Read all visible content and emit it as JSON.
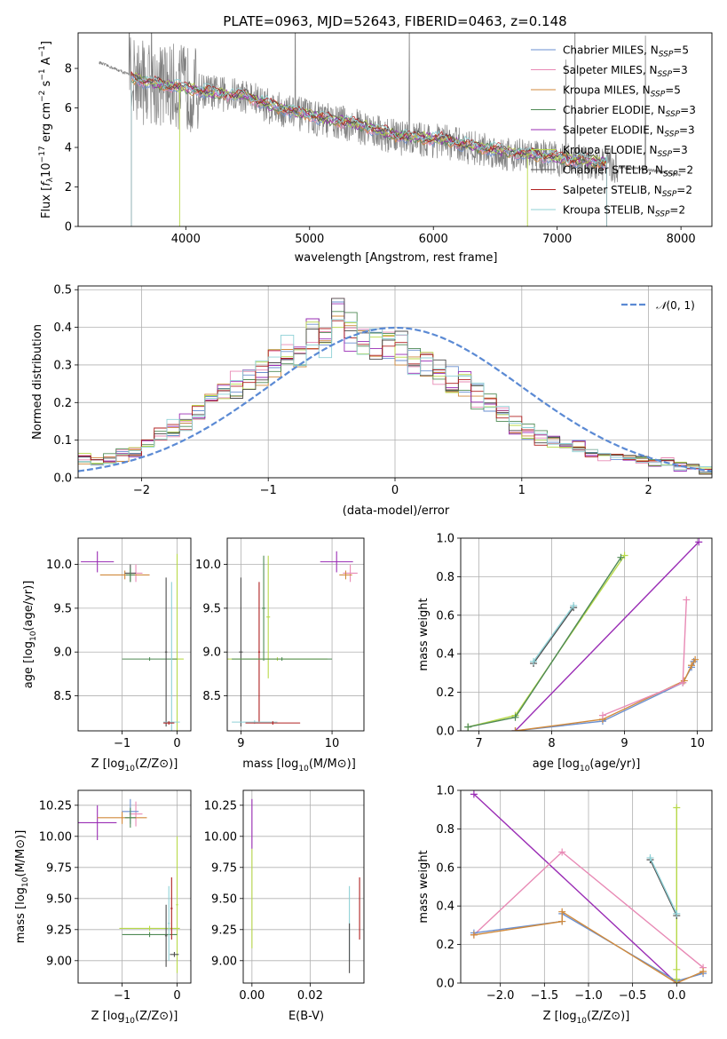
{
  "figure": {
    "title": "PLATE=0963, MJD=52643, FIBERID=0463, z=0.148"
  },
  "colors": {
    "Chabrier MILES": "#6a8fd0",
    "Salpeter MILES": "#e88ab5",
    "Kroupa MILES": "#d08a3c",
    "Chabrier ELODIE": "#4f8a55",
    "Salpeter ELODIE": "#9a2db5",
    "Kroupa ELODIE": "#b8d94a",
    "Chabrier STELIB": "#4d4d4d",
    "Salpeter STELIB": "#b02020",
    "Kroupa STELIB": "#8fd1d6",
    "data": "#808080",
    "normal": "#5b8ad4"
  },
  "chart_data": [
    {
      "id": "spectrum",
      "type": "line",
      "xlabel": "wavelength [Angstrom, rest frame]",
      "ylabel_main": "Flux [",
      "xlim": [
        3130,
        8250
      ],
      "ylim": [
        0,
        9.8
      ],
      "xticks": [
        4000,
        5000,
        6000,
        7000,
        8000
      ],
      "yticks": [
        0,
        2,
        4,
        6,
        8
      ],
      "grid": false,
      "legend_position": "right",
      "legend": [
        {
          "name": "Chabrier MILES",
          "nssp": "5"
        },
        {
          "name": "Salpeter MILES",
          "nssp": "3"
        },
        {
          "name": "Kroupa MILES",
          "nssp": "5"
        },
        {
          "name": "Chabrier ELODIE",
          "nssp": "3"
        },
        {
          "name": "Salpeter ELODIE",
          "nssp": "3"
        },
        {
          "name": "Kroupa ELODIE",
          "nssp": "3"
        },
        {
          "name": "Chabrier STELIB",
          "nssp": "2"
        },
        {
          "name": "Salpeter STELIB",
          "nssp": "2"
        },
        {
          "name": "Kroupa STELIB",
          "nssp": "2"
        }
      ],
      "data_trend": {
        "x": [
          3300,
          3500,
          3700,
          3900,
          4100,
          4300,
          4500,
          4700,
          4900,
          5100,
          5300,
          5500,
          5700,
          5900,
          6100,
          6300,
          6500,
          6700,
          6900,
          7100,
          7300,
          7500,
          7700,
          7900,
          8000
        ],
        "y": [
          8.3,
          7.8,
          7.2,
          7.1,
          6.9,
          6.7,
          6.6,
          6.0,
          5.7,
          5.4,
          5.2,
          4.9,
          4.5,
          4.4,
          4.3,
          4.0,
          3.8,
          3.6,
          3.5,
          3.3,
          3.2,
          3.0,
          2.9,
          2.7,
          2.6
        ]
      },
      "model_trend": {
        "x": [
          3550,
          3700,
          3900,
          4100,
          4300,
          4500,
          4700,
          4900,
          5100,
          5300,
          5500,
          5700,
          5900,
          6100,
          6300,
          6500,
          6700,
          6900,
          7100,
          7300,
          7400
        ],
        "y": [
          7.6,
          7.3,
          7.1,
          6.9,
          6.7,
          6.6,
          6.1,
          5.8,
          5.5,
          5.3,
          5.0,
          4.6,
          4.5,
          4.4,
          4.1,
          3.9,
          3.7,
          3.6,
          3.4,
          3.3,
          3.2
        ]
      }
    },
    {
      "id": "residuals",
      "type": "step",
      "xlabel": "(data-model)/error",
      "ylabel": "Normed distribution",
      "xlim": [
        -2.5,
        2.5
      ],
      "ylim": [
        0,
        0.51
      ],
      "xticks": [
        -2,
        -1,
        0,
        1,
        2
      ],
      "yticks": [
        0.0,
        0.1,
        0.2,
        0.3,
        0.4,
        0.5
      ],
      "grid": true,
      "legend_position": "top-right",
      "normal_label": "(0, 1)",
      "bin_edges_start": -2.5,
      "bin_width": 0.1,
      "hist_mean": [
        0.05,
        0.04,
        0.05,
        0.06,
        0.07,
        0.09,
        0.11,
        0.13,
        0.15,
        0.17,
        0.2,
        0.22,
        0.24,
        0.27,
        0.29,
        0.31,
        0.33,
        0.35,
        0.37,
        0.38,
        0.43,
        0.39,
        0.37,
        0.36,
        0.34,
        0.35,
        0.31,
        0.3,
        0.27,
        0.26,
        0.25,
        0.22,
        0.2,
        0.17,
        0.14,
        0.12,
        0.11,
        0.1,
        0.09,
        0.08,
        0.07,
        0.06,
        0.06,
        0.05,
        0.05,
        0.04,
        0.04,
        0.03,
        0.03,
        0.02
      ]
    },
    {
      "id": "age-vs-Z",
      "type": "errorbar",
      "xlabel_main": "Z [log",
      "ylabel_main": "age  [log",
      "xlim": [
        -1.8,
        0.25
      ],
      "ylim": [
        8.1,
        10.3
      ],
      "xticks": [
        -1,
        0
      ],
      "yticks": [
        8.5,
        9.0,
        9.5,
        10.0
      ],
      "grid": true,
      "points": [
        {
          "series": "Salpeter ELODIE",
          "x": -1.45,
          "y": 10.03,
          "xerr": 0.3,
          "yerr": 0.12
        },
        {
          "series": "Salpeter MILES",
          "x": -0.75,
          "y": 9.9,
          "xerr": 0.12,
          "yerr": 0.1
        },
        {
          "series": "Kroupa MILES",
          "x": -0.95,
          "y": 9.88,
          "xerr": 0.45,
          "yerr": 0.05
        },
        {
          "series": "Chabrier STELIB",
          "x": -0.85,
          "y": 9.9,
          "xerr": 0.1,
          "yerr": 0.1
        },
        {
          "series": "Chabrier ELODIE",
          "x": -0.85,
          "y": 9.88,
          "xerr": 0.08,
          "yerr": 0.08
        },
        {
          "series": "Kroupa ELODIE",
          "x": 0.0,
          "y": 8.92,
          "xerr": 0.12,
          "yerr": 1.2
        },
        {
          "series": "Chabrier ELODIE",
          "x": -0.5,
          "y": 8.92,
          "xerr": 0.5,
          "yerr": 0.02
        },
        {
          "series": "Chabrier STELIB",
          "x": -0.2,
          "y": 9.0,
          "xerr": 0.02,
          "yerr": 0.85
        },
        {
          "series": "Kroupa STELIB",
          "x": -0.1,
          "y": 8.2,
          "xerr": 0.15,
          "yerr": 1.6
        },
        {
          "series": "Salpeter STELIB",
          "x": -0.15,
          "y": 8.19,
          "xerr": 0.1,
          "yerr": 0.02
        }
      ]
    },
    {
      "id": "age-vs-mass",
      "type": "errorbar",
      "xlabel_main": "mass [log",
      "xlim": [
        8.85,
        10.35
      ],
      "ylim": [
        8.1,
        10.3
      ],
      "xticks": [
        9,
        10
      ],
      "yticks": [
        8.5,
        9.0,
        9.5,
        10.0
      ],
      "grid": true,
      "points": [
        {
          "series": "Salpeter ELODIE",
          "x": 10.05,
          "y": 10.03,
          "xerr": 0.18,
          "yerr": 0.12
        },
        {
          "series": "Salpeter MILES",
          "x": 10.2,
          "y": 9.9,
          "xerr": 0.08,
          "yerr": 0.1
        },
        {
          "series": "Kroupa MILES",
          "x": 10.15,
          "y": 9.88,
          "xerr": 0.07,
          "yerr": 0.05
        },
        {
          "series": "Chabrier STELIB",
          "x": 9.0,
          "y": 9.0,
          "xerr": 0.02,
          "yerr": 0.85
        },
        {
          "series": "Salpeter STELIB",
          "x": 9.2,
          "y": 9.0,
          "xerr": 0.01,
          "yerr": 0.8
        },
        {
          "series": "Kroupa ELODIE",
          "x": 9.3,
          "y": 9.4,
          "xerr": 0.02,
          "yerr": 0.7
        },
        {
          "series": "Chabrier ELODIE",
          "x": 9.25,
          "y": 9.5,
          "xerr": 0.02,
          "yerr": 0.6
        },
        {
          "series": "Kroupa ELODIE",
          "x": 9.4,
          "y": 8.92,
          "xerr": 0.55,
          "yerr": 0.02
        },
        {
          "series": "Chabrier ELODIE",
          "x": 9.45,
          "y": 8.92,
          "xerr": 0.55,
          "yerr": 0.02
        },
        {
          "series": "Kroupa STELIB",
          "x": 9.15,
          "y": 8.2,
          "xerr": 0.25,
          "yerr": 0.02
        },
        {
          "series": "Salpeter STELIB",
          "x": 9.35,
          "y": 8.19,
          "xerr": 0.3,
          "yerr": 0.02
        }
      ]
    },
    {
      "id": "weight-vs-age",
      "type": "line",
      "xlabel_main": "age  [log",
      "ylabel": "mass weight",
      "xlim": [
        6.75,
        10.2
      ],
      "ylim": [
        0,
        1.0
      ],
      "xticks": [
        7,
        8,
        9,
        10
      ],
      "yticks": [
        0.0,
        0.2,
        0.4,
        0.6,
        0.8,
        1.0
      ],
      "grid": true,
      "series": [
        {
          "name": "Kroupa ELODIE",
          "x": [
            6.85,
            7.5,
            9.0
          ],
          "y": [
            0.02,
            0.08,
            0.91
          ]
        },
        {
          "name": "Chabrier ELODIE",
          "x": [
            6.85,
            7.5,
            8.95
          ],
          "y": [
            0.02,
            0.07,
            0.9
          ]
        },
        {
          "name": "Salpeter ELODIE",
          "x": [
            7.5,
            10.02
          ],
          "y": [
            0.0,
            0.98
          ]
        },
        {
          "name": "Chabrier STELIB",
          "x": [
            7.75,
            8.3
          ],
          "y": [
            0.35,
            0.64
          ]
        },
        {
          "name": "Kroupa STELIB",
          "x": [
            7.75,
            8.3
          ],
          "y": [
            0.36,
            0.65
          ]
        },
        {
          "name": "Chabrier MILES",
          "x": [
            7.5,
            8.7,
            9.8,
            9.92,
            9.95
          ],
          "y": [
            0.0,
            0.05,
            0.25,
            0.33,
            0.36
          ]
        },
        {
          "name": "Kroupa MILES",
          "x": [
            7.5,
            8.7,
            9.82,
            9.92,
            9.97
          ],
          "y": [
            0.0,
            0.06,
            0.26,
            0.34,
            0.37
          ]
        },
        {
          "name": "Salpeter MILES",
          "x": [
            8.7,
            9.8,
            9.85
          ],
          "y": [
            0.08,
            0.25,
            0.68
          ]
        }
      ]
    },
    {
      "id": "mass-vs-Z",
      "type": "errorbar",
      "xlabel_main": "Z [log",
      "ylabel_main": "mass [log",
      "xlim": [
        -1.8,
        0.25
      ],
      "ylim": [
        8.82,
        10.37
      ],
      "xticks": [
        -1,
        0
      ],
      "yticks": [
        9.0,
        9.25,
        9.5,
        9.75,
        10.0,
        10.25
      ],
      "grid": true,
      "points": [
        {
          "series": "Salpeter ELODIE",
          "x": -1.45,
          "y": 10.11,
          "xerr": 0.35,
          "yerr": 0.14
        },
        {
          "series": "Salpeter MILES",
          "x": -0.75,
          "y": 10.18,
          "xerr": 0.12,
          "yerr": 0.1
        },
        {
          "series": "Kroupa MILES",
          "x": -1.0,
          "y": 10.15,
          "xerr": 0.45,
          "yerr": 0.05
        },
        {
          "series": "Chabrier MILES",
          "x": -0.85,
          "y": 10.2,
          "xerr": 0.15,
          "yerr": 0.1
        },
        {
          "series": "Chabrier ELODIE",
          "x": -0.85,
          "y": 10.15,
          "xerr": 0.1,
          "yerr": 0.08
        },
        {
          "series": "Kroupa ELODIE",
          "x": 0.0,
          "y": 9.45,
          "xerr": 0.02,
          "yerr": 0.55
        },
        {
          "series": "Kroupa ELODIE",
          "x": -0.5,
          "y": 9.26,
          "xerr": 0.55,
          "yerr": 0.02
        },
        {
          "series": "Chabrier ELODIE",
          "x": -0.5,
          "y": 9.21,
          "xerr": 0.5,
          "yerr": 0.02
        },
        {
          "series": "Salpeter STELIB",
          "x": -0.1,
          "y": 9.42,
          "xerr": 0.02,
          "yerr": 0.25
        },
        {
          "series": "Chabrier STELIB",
          "x": -0.2,
          "y": 9.2,
          "xerr": 0.02,
          "yerr": 0.25
        },
        {
          "series": "Kroupa STELIB",
          "x": -0.15,
          "y": 9.3,
          "xerr": 0.02,
          "yerr": 0.3
        },
        {
          "series": "Chabrier STELIB",
          "x": -0.05,
          "y": 9.05,
          "xerr": 0.08,
          "yerr": 0.02
        }
      ]
    },
    {
      "id": "mass-vs-ebv",
      "type": "errorbar",
      "xlabel": "E(B-V)",
      "xlim": [
        -0.003,
        0.0385
      ],
      "ylim": [
        8.82,
        10.37
      ],
      "xticks": [
        0.0,
        0.02
      ],
      "yticks": [
        9.0,
        9.25,
        9.5,
        9.75,
        10.0,
        10.25
      ],
      "grid": true,
      "points": [
        {
          "series": "Salpeter ELODIE",
          "x": 0.0,
          "y": 10.1,
          "xerr": 0.0,
          "yerr": 0.2
        },
        {
          "series": "Kroupa ELODIE",
          "x": 0.0,
          "y": 9.5,
          "xerr": 0.0,
          "yerr": 0.4
        },
        {
          "series": "Salpeter STELIB",
          "x": 0.037,
          "y": 9.42,
          "xerr": 0.0,
          "yerr": 0.25
        },
        {
          "series": "Kroupa STELIB",
          "x": 0.0335,
          "y": 9.3,
          "xerr": 0.0,
          "yerr": 0.3
        },
        {
          "series": "Chabrier STELIB",
          "x": 0.0335,
          "y": 9.1,
          "xerr": 0.0,
          "yerr": 0.2
        }
      ]
    },
    {
      "id": "weight-vs-Z",
      "type": "line",
      "xlabel_main": "Z [log",
      "ylabel": "mass weight",
      "xlim": [
        -2.45,
        0.4
      ],
      "ylim": [
        0,
        1.0
      ],
      "xticks": [
        -2.0,
        -1.5,
        -1.0,
        -0.5,
        0.0
      ],
      "yticks": [
        0.0,
        0.2,
        0.4,
        0.6,
        0.8,
        1.0
      ],
      "grid": true,
      "series": [
        {
          "name": "Salpeter ELODIE",
          "x": [
            -2.3,
            0.0
          ],
          "y": [
            0.98,
            0.0
          ]
        },
        {
          "name": "Salpeter MILES",
          "x": [
            -2.3,
            -1.3,
            0.3
          ],
          "y": [
            0.25,
            0.68,
            0.08
          ]
        },
        {
          "name": "Chabrier MILES",
          "x": [
            -2.3,
            -1.3,
            -1.3,
            0.0,
            0.3
          ],
          "y": [
            0.26,
            0.32,
            0.36,
            0.01,
            0.05
          ]
        },
        {
          "name": "Kroupa MILES",
          "x": [
            -2.3,
            -1.3,
            -1.3,
            0.0,
            0.3
          ],
          "y": [
            0.25,
            0.32,
            0.37,
            0.0,
            0.06
          ]
        },
        {
          "name": "Kroupa ELODIE",
          "x": [
            0.0,
            0.0,
            0.0
          ],
          "y": [
            0.91,
            0.07,
            0.02
          ]
        },
        {
          "name": "Chabrier STELIB",
          "x": [
            -0.3,
            0.0
          ],
          "y": [
            0.64,
            0.35
          ]
        },
        {
          "name": "Kroupa STELIB",
          "x": [
            -0.3,
            0.0
          ],
          "y": [
            0.65,
            0.36
          ]
        }
      ]
    }
  ]
}
